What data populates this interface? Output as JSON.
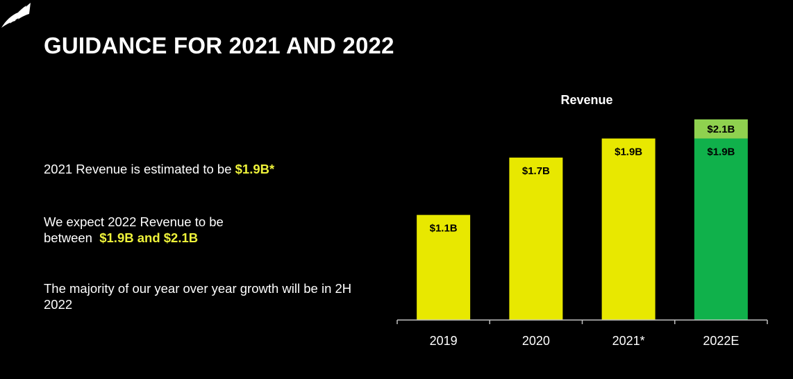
{
  "slide": {
    "title": "GUIDANCE FOR 2021 AND 2022",
    "bullets": {
      "b1": {
        "text": "2021 Revenue is estimated to be ",
        "highlight": "$1.9B*"
      },
      "b2": {
        "line1": "We expect 2022 Revenue to be",
        "line2": "between ",
        "highlight": "$1.9B and $2.1B"
      },
      "b3": {
        "text": "The majority of our year over year growth will be in 2H 2022"
      }
    }
  },
  "chart_data": {
    "type": "bar",
    "title": "Revenue",
    "categories": [
      "2019",
      "2020",
      "2021*",
      "2022E"
    ],
    "values": [
      1.1,
      1.7,
      1.9,
      1.9
    ],
    "value_labels": [
      "$1.1B",
      "$1.7B",
      "$1.9B",
      "$1.9B"
    ],
    "range_top": {
      "category": "2022E",
      "value": 2.1,
      "label": "$2.1B"
    },
    "ylim": [
      0,
      2.1
    ],
    "grid": false,
    "colors": {
      "bar": "#e8e800",
      "bar_2022": "#10b14b",
      "range_top": "#8fd14f",
      "label_on_yellow": "#000000",
      "label_on_green": "#000000",
      "axis": "#bfbfbf",
      "highlight_text": "#eef23a"
    }
  }
}
